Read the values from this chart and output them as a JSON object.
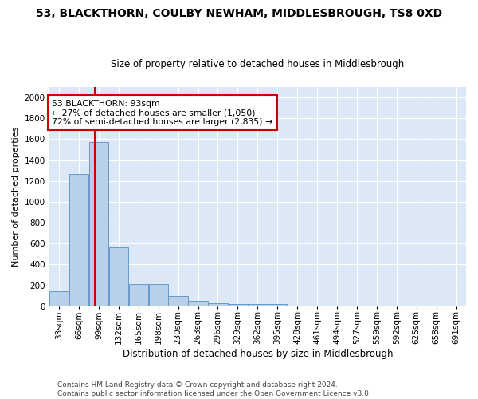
{
  "title": "53, BLACKTHORN, COULBY NEWHAM, MIDDLESBROUGH, TS8 0XD",
  "subtitle": "Size of property relative to detached houses in Middlesbrough",
  "xlabel": "Distribution of detached houses by size in Middlesbrough",
  "ylabel": "Number of detached properties",
  "bar_color": "#b8d0e8",
  "bar_edge_color": "#6699cc",
  "background_color": "#dce8f5",
  "grid_color": "#ffffff",
  "annotation_text": "53 BLACKTHORN: 93sqm\n← 27% of detached houses are smaller (1,050)\n72% of semi-detached houses are larger (2,835) →",
  "annotation_box_color": "#ffffff",
  "annotation_box_edge": "#cc0000",
  "vline_x": 93,
  "vline_color": "#cc0000",
  "categories": [
    "33sqm",
    "66sqm",
    "99sqm",
    "132sqm",
    "165sqm",
    "198sqm",
    "230sqm",
    "263sqm",
    "296sqm",
    "329sqm",
    "362sqm",
    "395sqm",
    "428sqm",
    "461sqm",
    "494sqm",
    "527sqm",
    "559sqm",
    "592sqm",
    "625sqm",
    "658sqm",
    "691sqm"
  ],
  "bin_edges_sqm": [
    16.5,
    49.5,
    82.5,
    115.5,
    148.5,
    181.5,
    214.5,
    247.5,
    280.5,
    313.5,
    346.5,
    379.5,
    412.5,
    445.5,
    478.5,
    511.5,
    544.5,
    577.5,
    610.5,
    643.5,
    676.5,
    709.5
  ],
  "values": [
    140,
    1270,
    1570,
    565,
    215,
    210,
    100,
    50,
    25,
    20,
    20,
    20,
    0,
    0,
    0,
    0,
    0,
    0,
    0,
    0,
    0
  ],
  "ylim": [
    0,
    2100
  ],
  "yticks": [
    0,
    200,
    400,
    600,
    800,
    1000,
    1200,
    1400,
    1600,
    1800,
    2000
  ],
  "fig_background": "#ffffff",
  "footer": "Contains HM Land Registry data © Crown copyright and database right 2024.\nContains public sector information licensed under the Open Government Licence v3.0.",
  "title_fontsize": 10,
  "subtitle_fontsize": 8.5,
  "ylabel_fontsize": 8,
  "xlabel_fontsize": 8.5,
  "tick_fontsize": 7.5,
  "footer_fontsize": 6.5,
  "annotation_fontsize": 7.8
}
